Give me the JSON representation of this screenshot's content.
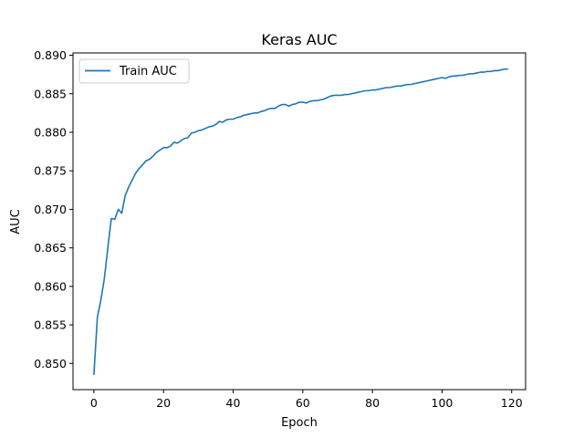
{
  "chart_data": {
    "type": "line",
    "title": "Keras AUC",
    "xlabel": "Epoch",
    "ylabel": "AUC",
    "xlim": [
      -6,
      124
    ],
    "ylim": [
      0.8466,
      0.8903
    ],
    "xticks": [
      0,
      20,
      40,
      60,
      80,
      100,
      120
    ],
    "yticks": [
      0.85,
      0.855,
      0.86,
      0.865,
      0.87,
      0.875,
      0.88,
      0.885,
      0.89
    ],
    "ytick_labels": [
      "0.850",
      "0.855",
      "0.860",
      "0.865",
      "0.870",
      "0.875",
      "0.880",
      "0.885",
      "0.890"
    ],
    "grid": false,
    "legend_position": "top-left",
    "series": [
      {
        "name": "Train AUC",
        "color": "#1f77b4",
        "x": [
          0,
          1,
          2,
          3,
          4,
          5,
          6,
          7,
          8,
          9,
          10,
          11,
          12,
          13,
          14,
          15,
          16,
          17,
          18,
          19,
          20,
          21,
          22,
          23,
          24,
          25,
          26,
          27,
          28,
          29,
          30,
          31,
          32,
          33,
          34,
          35,
          36,
          37,
          38,
          39,
          40,
          41,
          42,
          43,
          44,
          45,
          46,
          47,
          48,
          49,
          50,
          51,
          52,
          53,
          54,
          55,
          56,
          57,
          58,
          59,
          60,
          61,
          62,
          63,
          64,
          65,
          66,
          67,
          68,
          69,
          70,
          71,
          72,
          73,
          74,
          75,
          76,
          77,
          78,
          79,
          80,
          81,
          82,
          83,
          84,
          85,
          86,
          87,
          88,
          89,
          90,
          91,
          92,
          93,
          94,
          95,
          96,
          97,
          98,
          99,
          100,
          101,
          102,
          103,
          104,
          105,
          106,
          107,
          108,
          109,
          110,
          111,
          112,
          113,
          114,
          115,
          116,
          117,
          118,
          119
        ],
        "values": [
          0.8485,
          0.856,
          0.8582,
          0.861,
          0.865,
          0.8688,
          0.8687,
          0.87,
          0.8695,
          0.8718,
          0.8729,
          0.8738,
          0.8747,
          0.8753,
          0.8758,
          0.8763,
          0.8765,
          0.8769,
          0.8774,
          0.8777,
          0.878,
          0.878,
          0.8782,
          0.8787,
          0.8786,
          0.8789,
          0.8792,
          0.8793,
          0.8799,
          0.88,
          0.8802,
          0.8803,
          0.8805,
          0.8807,
          0.8808,
          0.881,
          0.8814,
          0.8813,
          0.8816,
          0.8817,
          0.8817,
          0.8819,
          0.882,
          0.8822,
          0.8823,
          0.8824,
          0.8825,
          0.8825,
          0.8827,
          0.8828,
          0.883,
          0.8831,
          0.8831,
          0.8834,
          0.8836,
          0.8836,
          0.8834,
          0.8836,
          0.8837,
          0.8839,
          0.8839,
          0.8838,
          0.884,
          0.8841,
          0.8841,
          0.8842,
          0.8843,
          0.8845,
          0.8847,
          0.8848,
          0.8848,
          0.8848,
          0.8849,
          0.8849,
          0.885,
          0.8851,
          0.8852,
          0.8853,
          0.8854,
          0.8854,
          0.8855,
          0.8855,
          0.8856,
          0.8857,
          0.8858,
          0.8858,
          0.8859,
          0.886,
          0.886,
          0.8861,
          0.8862,
          0.8862,
          0.8863,
          0.8864,
          0.8865,
          0.8866,
          0.8867,
          0.8868,
          0.8869,
          0.887,
          0.8871,
          0.887,
          0.8872,
          0.8873,
          0.8873,
          0.8874,
          0.8874,
          0.8875,
          0.8876,
          0.8876,
          0.8877,
          0.8878,
          0.8878,
          0.8879,
          0.8879,
          0.888,
          0.888,
          0.8881,
          0.8882,
          0.8882
        ]
      }
    ]
  }
}
